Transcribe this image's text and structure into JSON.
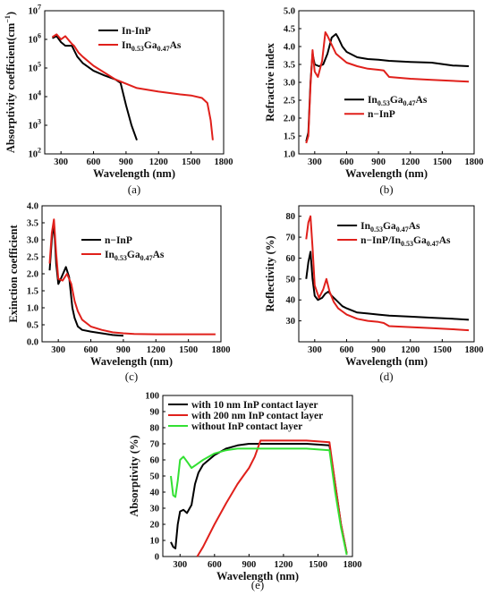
{
  "chart_data": [
    {
      "id": "a",
      "type": "line",
      "caption": "(a)",
      "xlabel": "Wavelength",
      "xunit": "(nm)",
      "ylabel": "Absorptivity coefficient(cm",
      "ylabel_sup": "−1",
      "ylabel_end": ")",
      "xlim": [
        150,
        1800
      ],
      "ylim": [
        100,
        10000000
      ],
      "ylog": true,
      "xticks": [
        300,
        600,
        900,
        1200,
        1500,
        1800
      ],
      "yticks": [
        100,
        1000,
        10000,
        100000,
        1000000,
        10000000
      ],
      "ytick_labels": [
        "10^2",
        "10^3",
        "10^4",
        "10^5",
        "10^6",
        "10^7"
      ],
      "legend_pos": "top-right",
      "series": [
        {
          "name": "In-InP",
          "color": "#000000",
          "x": [
            220,
            260,
            300,
            340,
            400,
            450,
            500,
            600,
            700,
            800,
            850,
            900,
            950,
            1000
          ],
          "y": [
            1100000,
            1300000,
            800000,
            600000,
            600000,
            250000,
            150000,
            80000,
            55000,
            40000,
            30000,
            5000,
            1000,
            300
          ]
        },
        {
          "name": "In",
          "sub": "0.53",
          "mid": "Ga",
          "sub2": "0.47",
          "tail": "As",
          "color": "#e0201b",
          "x": [
            220,
            260,
            300,
            340,
            400,
            420,
            460,
            500,
            600,
            800,
            1000,
            1200,
            1400,
            1500,
            1600,
            1650,
            1680,
            1700
          ],
          "y": [
            1200000,
            1500000,
            1000000,
            1300000,
            700000,
            600000,
            350000,
            250000,
            120000,
            40000,
            20000,
            15000,
            12000,
            11000,
            9000,
            6000,
            1500,
            300
          ]
        }
      ]
    },
    {
      "id": "b",
      "type": "line",
      "caption": "(b)",
      "xlabel": "Wavelength",
      "xunit": "(nm)",
      "ylabel": "Refractive index",
      "xlim": [
        150,
        1800
      ],
      "ylim": [
        1.0,
        5.0
      ],
      "xticks": [
        300,
        600,
        900,
        1200,
        1500,
        1800
      ],
      "yticks": [
        1.0,
        1.5,
        2.0,
        2.5,
        3.0,
        3.5,
        4.0,
        4.5,
        5.0
      ],
      "ytick_labels": [
        "1.0",
        "1.5",
        "2.0",
        "2.5",
        "3.0",
        "3.5",
        "4.0",
        "4.5",
        "5.0"
      ],
      "legend_pos": "right",
      "series": [
        {
          "name": "In",
          "sub": "0.53",
          "mid": "Ga",
          "sub2": "0.47",
          "tail": "As",
          "color": "#000000",
          "x": [
            220,
            240,
            260,
            280,
            300,
            340,
            380,
            420,
            460,
            500,
            520,
            560,
            600,
            700,
            800,
            900,
            1000,
            1200,
            1400,
            1600,
            1750
          ],
          "y": [
            1.35,
            1.6,
            3.0,
            3.8,
            3.5,
            3.45,
            3.5,
            3.8,
            4.25,
            4.35,
            4.25,
            4.0,
            3.85,
            3.7,
            3.65,
            3.63,
            3.6,
            3.57,
            3.55,
            3.47,
            3.45
          ]
        },
        {
          "name": "n−InP",
          "color": "#e0201b",
          "x": [
            220,
            240,
            260,
            280,
            300,
            330,
            370,
            400,
            420,
            460,
            500,
            560,
            600,
            700,
            800,
            900,
            950,
            1000,
            1200,
            1400,
            1600,
            1750
          ],
          "y": [
            1.3,
            1.5,
            2.9,
            3.9,
            3.3,
            3.15,
            3.6,
            4.4,
            4.3,
            4.05,
            3.8,
            3.65,
            3.55,
            3.45,
            3.38,
            3.35,
            3.33,
            3.15,
            3.1,
            3.07,
            3.04,
            3.02
          ]
        }
      ]
    },
    {
      "id": "c",
      "type": "line",
      "caption": "(c)",
      "xlabel": "Wavelength",
      "xunit": "(nm)",
      "ylabel": "Exinction coefficient",
      "xlim": [
        150,
        1800
      ],
      "ylim": [
        0.0,
        4.0
      ],
      "xticks": [
        300,
        600,
        900,
        1200,
        1500,
        1800
      ],
      "yticks": [
        0.0,
        0.5,
        1.0,
        1.5,
        2.0,
        2.5,
        3.0,
        3.5,
        4.0
      ],
      "ytick_labels": [
        "0.0",
        "0.5",
        "1.0",
        "1.5",
        "2.0",
        "2.5",
        "3.0",
        "3.5",
        "4.0"
      ],
      "legend_pos": "top-right",
      "series": [
        {
          "name": "n−InP",
          "color": "#000000",
          "x": [
            220,
            240,
            260,
            280,
            300,
            330,
            370,
            400,
            430,
            450,
            480,
            520,
            600,
            700,
            800,
            900
          ],
          "y": [
            2.1,
            3.0,
            3.5,
            2.3,
            1.7,
            1.9,
            2.2,
            1.9,
            1.0,
            0.7,
            0.45,
            0.35,
            0.3,
            0.25,
            0.2,
            0.18
          ]
        },
        {
          "name": "In",
          "sub": "0.53",
          "mid": "Ga",
          "sub2": "0.47",
          "tail": "As",
          "color": "#e0201b",
          "x": [
            220,
            240,
            260,
            280,
            300,
            340,
            380,
            420,
            450,
            480,
            520,
            600,
            700,
            800,
            900,
            1000,
            1200,
            1400,
            1600,
            1750
          ],
          "y": [
            2.3,
            3.2,
            3.6,
            2.6,
            1.85,
            1.8,
            2.0,
            1.7,
            1.2,
            0.9,
            0.65,
            0.45,
            0.35,
            0.28,
            0.25,
            0.23,
            0.22,
            0.22,
            0.22,
            0.22
          ]
        }
      ]
    },
    {
      "id": "d",
      "type": "line",
      "caption": "(d)",
      "xlabel": "Wavelength",
      "xunit": "(nm)",
      "ylabel": "Reflectivity (%)",
      "xlim": [
        150,
        1800
      ],
      "ylim": [
        20,
        85
      ],
      "xticks": [
        300,
        600,
        900,
        1200,
        1500,
        1800
      ],
      "yticks": [
        30,
        40,
        50,
        60,
        70,
        80
      ],
      "ytick_labels": [
        "30",
        "40",
        "50",
        "60",
        "70",
        "80"
      ],
      "legend_pos": "top-right",
      "series": [
        {
          "name": "In",
          "sub": "0.53",
          "mid": "Ga",
          "sub2": "0.47",
          "tail": "As",
          "color": "#000000",
          "x": [
            220,
            240,
            260,
            280,
            300,
            330,
            370,
            400,
            430,
            460,
            500,
            560,
            600,
            700,
            800,
            900,
            1000,
            1200,
            1400,
            1600,
            1750
          ],
          "y": [
            50,
            58,
            63,
            50,
            42,
            40,
            41,
            43,
            44,
            42,
            40,
            37,
            36,
            34,
            33.5,
            33,
            32.5,
            32,
            31.5,
            31,
            30.5
          ]
        },
        {
          "name": "n−InP/In",
          "sub": "0.53",
          "mid": "Ga",
          "sub2": "0.47",
          "tail": "As",
          "color": "#e0201b",
          "x": [
            220,
            240,
            260,
            280,
            300,
            340,
            380,
            410,
            440,
            480,
            520,
            600,
            700,
            800,
            900,
            950,
            1000,
            1200,
            1400,
            1600,
            1750
          ],
          "y": [
            69,
            77,
            80,
            65,
            47,
            41,
            45,
            50,
            44,
            39,
            36,
            33,
            31,
            30,
            29.5,
            29,
            27.5,
            27,
            26.5,
            26,
            25.5
          ]
        }
      ]
    },
    {
      "id": "e",
      "type": "line",
      "caption": "(e)",
      "xlabel": "Wavelength",
      "xunit": "(nm)",
      "ylabel": "Absorptivity (%)",
      "xlim": [
        150,
        1800
      ],
      "ylim": [
        0,
        100
      ],
      "xticks": [
        300,
        600,
        900,
        1200,
        1500,
        1800
      ],
      "yticks": [
        0,
        10,
        20,
        30,
        40,
        50,
        60,
        70,
        80,
        90,
        100
      ],
      "ytick_labels": [
        "0",
        "10",
        "20",
        "30",
        "40",
        "50",
        "60",
        "70",
        "80",
        "90",
        "100"
      ],
      "legend_pos": "top-left",
      "series": [
        {
          "name": "with 10 nm InP contact layer",
          "color": "#000000",
          "x": [
            220,
            240,
            260,
            280,
            300,
            330,
            360,
            400,
            430,
            460,
            500,
            600,
            700,
            800,
            900,
            1000,
            1200,
            1400,
            1600,
            1650,
            1700,
            1750
          ],
          "y": [
            9,
            6,
            5,
            20,
            28,
            29,
            27,
            32,
            45,
            52,
            57,
            63,
            67,
            69,
            70,
            70,
            70,
            70,
            69,
            45,
            20,
            2
          ]
        },
        {
          "name": "with 200 nm InP contact layer",
          "color": "#e0201b",
          "x": [
            450,
            500,
            600,
            700,
            800,
            850,
            900,
            950,
            1000,
            1200,
            1400,
            1600,
            1650,
            1700,
            1750
          ],
          "y": [
            0,
            6,
            20,
            33,
            45,
            50,
            55,
            62,
            72,
            72,
            72,
            71,
            45,
            20,
            2
          ]
        },
        {
          "name": "without InP contact layer",
          "color": "#33e033",
          "x": [
            220,
            240,
            260,
            280,
            300,
            330,
            370,
            400,
            440,
            480,
            500,
            600,
            700,
            800,
            900,
            1000,
            1200,
            1400,
            1600,
            1650,
            1700,
            1750
          ],
          "y": [
            50,
            38,
            37,
            47,
            60,
            62,
            58,
            55,
            57,
            59,
            60,
            64,
            66,
            67,
            67,
            67,
            67,
            67,
            66,
            40,
            18,
            1
          ]
        }
      ]
    }
  ]
}
